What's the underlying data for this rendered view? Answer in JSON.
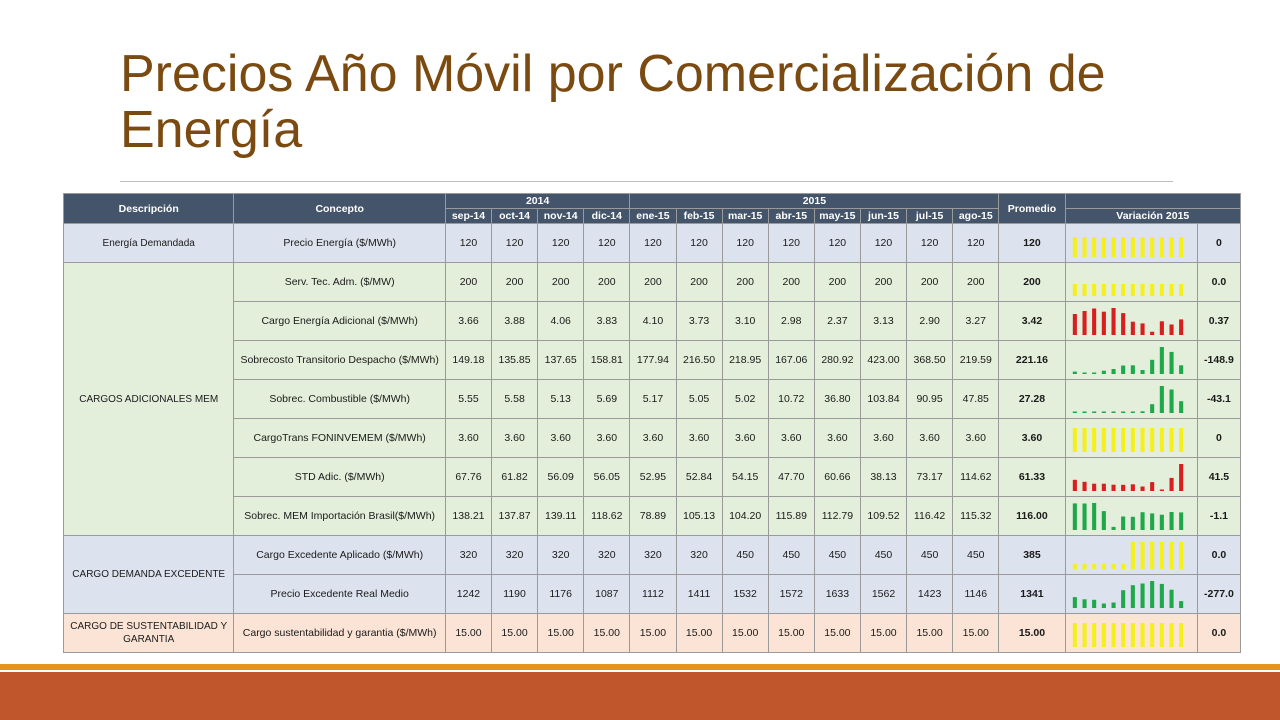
{
  "title": "Precios Año Móvil por Comercialización de Energía",
  "header": {
    "descripcion": "Descripción",
    "concepto": "Concepto",
    "year_2014": "2014",
    "year_2015": "2015",
    "promedio": "Promedio",
    "variacion": "Variación 2015",
    "months": [
      "sep-14",
      "oct-14",
      "nov-14",
      "dic-14",
      "ene-15",
      "feb-15",
      "mar-15",
      "abr-15",
      "may-15",
      "jun-15",
      "jul-15",
      "ago-15"
    ]
  },
  "sections": [
    {
      "name": "Energía Demandada",
      "bg": "#dde3ee",
      "rows": [
        {
          "concepto": "Precio Energía ($/MWh)",
          "values": [
            "120",
            "120",
            "120",
            "120",
            "120",
            "120",
            "120",
            "120",
            "120",
            "120",
            "120",
            "120"
          ],
          "promedio": "120",
          "variacion": "0",
          "spark_color": "#f5f019",
          "spark_kind": "bar",
          "spark_base": "mid"
        }
      ]
    },
    {
      "name": "CARGOS ADICIONALES MEM",
      "bg": "#e3efdb",
      "rows": [
        {
          "concepto": "Serv. Tec. Adm. ($/MW)",
          "values": [
            "200",
            "200",
            "200",
            "200",
            "200",
            "200",
            "200",
            "200",
            "200",
            "200",
            "200",
            "200"
          ],
          "promedio": "200",
          "variacion": "0.0",
          "spark_color": "#f5f019",
          "spark_kind": "bar",
          "spark_base": "low"
        },
        {
          "concepto": "Cargo Energía Adicional ($/MWh)",
          "values": [
            "3.66",
            "3.88",
            "4.06",
            "3.83",
            "4.10",
            "3.73",
            "3.10",
            "2.98",
            "2.37",
            "3.13",
            "2.90",
            "3.27"
          ],
          "promedio": "3.42",
          "variacion": "0.37",
          "spark_color": "#d91e1e",
          "spark_kind": "bar"
        },
        {
          "concepto": "Sobrecosto Transitorio Despacho ($/MWh)",
          "values": [
            "149.18",
            "135.85",
            "137.65",
            "158.81",
            "177.94",
            "216.50",
            "218.95",
            "167.06",
            "280.92",
            "423.00",
            "368.50",
            "219.59"
          ],
          "promedio": "221.16",
          "variacion": "-148.9",
          "spark_color": "#1fa84a",
          "spark_kind": "bar"
        },
        {
          "concepto": "Sobrec. Combustible ($/MWh)",
          "values": [
            "5.55",
            "5.58",
            "5.13",
            "5.69",
            "5.17",
            "5.05",
            "5.02",
            "10.72",
            "36.80",
            "103.84",
            "90.95",
            "47.85"
          ],
          "promedio": "27.28",
          "variacion": "-43.1",
          "spark_color": "#1fa84a",
          "spark_kind": "bar"
        },
        {
          "concepto": "CargoTrans FONINVEMEM ($/MWh)",
          "values": [
            "3.60",
            "3.60",
            "3.60",
            "3.60",
            "3.60",
            "3.60",
            "3.60",
            "3.60",
            "3.60",
            "3.60",
            "3.60",
            "3.60"
          ],
          "promedio": "3.60",
          "variacion": "0",
          "spark_color": "#f5f019",
          "spark_kind": "bar",
          "spark_base": "full"
        },
        {
          "concepto": "STD Adic. ($/MWh)",
          "values": [
            "67.76",
            "61.82",
            "56.09",
            "56.05",
            "52.95",
            "52.84",
            "54.15",
            "47.70",
            "60.66",
            "38.13",
            "73.17",
            "114.62"
          ],
          "promedio": "61.33",
          "variacion": "41.5",
          "spark_color": "#d91e1e",
          "spark_kind": "bar"
        },
        {
          "concepto": "Sobrec. MEM Importación Brasil($/MWh)",
          "values": [
            "138.21",
            "137.87",
            "139.11",
            "118.62",
            "78.89",
            "105.13",
            "104.20",
            "115.89",
            "112.79",
            "109.52",
            "116.42",
            "115.32"
          ],
          "promedio": "116.00",
          "variacion": "-1.1",
          "spark_color": "#1fa84a",
          "spark_kind": "bar"
        }
      ]
    },
    {
      "name": "CARGO DEMANDA EXCEDENTE",
      "bg": "#dde3ee",
      "rows": [
        {
          "concepto": "Cargo Excedente Aplicado ($/MWh)",
          "values": [
            "320",
            "320",
            "320",
            "320",
            "320",
            "320",
            "450",
            "450",
            "450",
            "450",
            "450",
            "450"
          ],
          "promedio": "385",
          "variacion": "0.0",
          "spark_color": "#f5f019",
          "spark_kind": "bar"
        },
        {
          "concepto": "Precio Excedente Real Medio",
          "values": [
            "1242",
            "1190",
            "1176",
            "1087",
            "1112",
            "1411",
            "1532",
            "1572",
            "1633",
            "1562",
            "1423",
            "1146"
          ],
          "promedio": "1341",
          "variacion": "-277.0",
          "spark_color": "#1fa84a",
          "spark_kind": "bar"
        }
      ]
    },
    {
      "name": "CARGO DE SUSTENTABILIDAD Y GARANTIA",
      "bg": "#fbe4d6",
      "rows": [
        {
          "concepto": "Cargo sustentabilidad y garantia ($/MWh)",
          "values": [
            "15.00",
            "15.00",
            "15.00",
            "15.00",
            "15.00",
            "15.00",
            "15.00",
            "15.00",
            "15.00",
            "15.00",
            "15.00",
            "15.00"
          ],
          "promedio": "15.00",
          "variacion": "0.0",
          "spark_color": "#f5f019",
          "spark_kind": "bar",
          "spark_base": "full"
        }
      ]
    }
  ]
}
